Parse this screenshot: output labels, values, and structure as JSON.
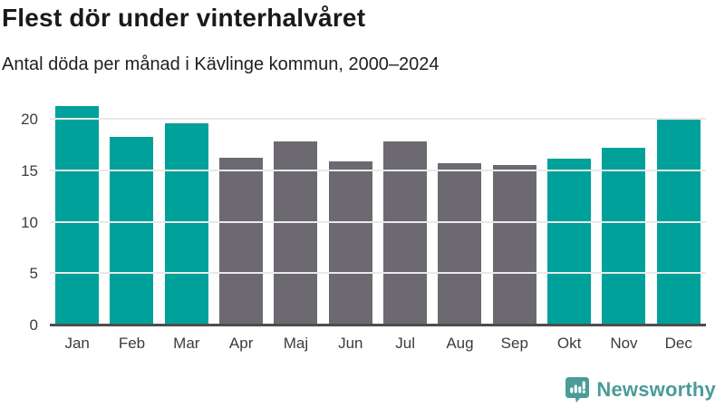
{
  "title": "Flest dör under vinterhalvåret",
  "subtitle": "Antal döda per månad i Kävlinge kommun, 2000–2024",
  "chart_data": {
    "type": "bar",
    "categories": [
      "Jan",
      "Feb",
      "Mar",
      "Apr",
      "Maj",
      "Jun",
      "Jul",
      "Aug",
      "Sep",
      "Okt",
      "Nov",
      "Dec"
    ],
    "values": [
      21.2,
      18.2,
      19.6,
      16.2,
      17.8,
      15.9,
      17.8,
      15.7,
      15.5,
      16.1,
      17.2,
      19.9
    ],
    "series_note": "winter months highlighted",
    "highlight_months": [
      "Jan",
      "Feb",
      "Mar",
      "Okt",
      "Nov",
      "Dec"
    ],
    "colors": {
      "highlight": "#00a19a",
      "default": "#6c6a70"
    },
    "xlabel": "",
    "ylabel": "",
    "ylim": [
      0,
      21.9
    ],
    "yticks": [
      0,
      5,
      10,
      15,
      20
    ],
    "grid": true,
    "legend": false
  },
  "branding": {
    "logo_text": "Newsworthy",
    "logo_color": "#4a9c98",
    "logo_icon": "bar-chart-speech-bubble-icon"
  }
}
